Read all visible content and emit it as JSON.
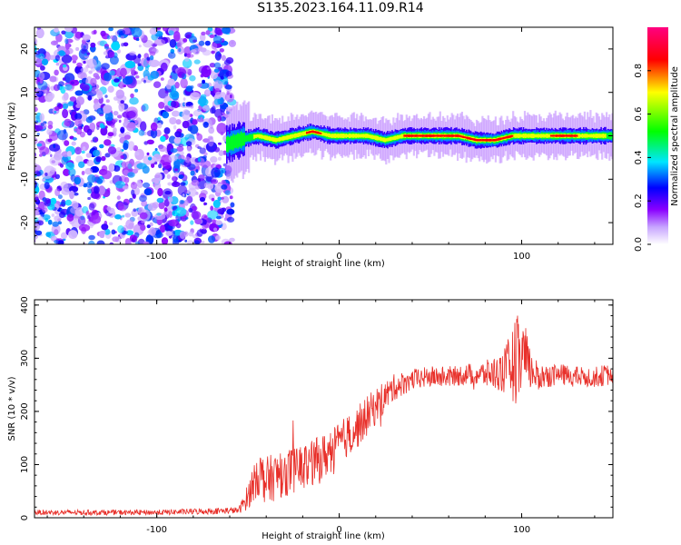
{
  "title": "S135.2023.164.11.09.R14",
  "chart_data": [
    {
      "type": "heatmap",
      "title": "",
      "xlabel": "Height of straight line (km)",
      "ylabel": "Frequency (Hz)",
      "xlim": [
        -167,
        150
      ],
      "ylim": [
        -25,
        25
      ],
      "xticks": [
        -100,
        0,
        100
      ],
      "yticks": [
        -20,
        -10,
        0,
        10,
        20
      ],
      "colorbar": {
        "label": "Normalized spectral amplitude",
        "range": [
          0.0,
          1.0
        ],
        "ticks": [
          0.0,
          0.2,
          0.4,
          0.6,
          0.8
        ],
        "colors": [
          "#ffffff",
          "#8a00ff",
          "#0000ff",
          "#00e6ff",
          "#00ff00",
          "#ffff00",
          "#ff0000",
          "#ff0080"
        ]
      },
      "noise_region_x": [
        -167,
        -60
      ],
      "signal_trace": {
        "x": [
          -62,
          -55,
          -45,
          -35,
          -25,
          -15,
          -5,
          5,
          15,
          25,
          35,
          45,
          55,
          65,
          75,
          85,
          95,
          105,
          115,
          125,
          135,
          145,
          150
        ],
        "frequency": [
          -2,
          -1,
          0,
          -1,
          0,
          1,
          0,
          0,
          0,
          -1,
          0,
          0,
          0,
          0,
          -1,
          -1,
          0,
          0,
          0,
          0,
          0,
          0,
          0
        ],
        "peak_amplitude": [
          0.5,
          0.6,
          0.7,
          0.7,
          0.75,
          0.9,
          0.8,
          0.85,
          0.8,
          0.8,
          0.85,
          0.9,
          0.95,
          0.9,
          0.85,
          0.9,
          0.85,
          0.8,
          0.85,
          0.9,
          0.8,
          0.7,
          0.6
        ]
      }
    },
    {
      "type": "line",
      "title": "",
      "xlabel": "Height of straight line (km)",
      "ylabel": "SNR (10 * v/v)",
      "xlim": [
        -167,
        150
      ],
      "ylim": [
        0,
        410
      ],
      "xticks": [
        -100,
        0,
        100
      ],
      "yticks": [
        0,
        100,
        200,
        300,
        400
      ],
      "series": [
        {
          "color": "#e8302a",
          "x": [
            -167,
            -150,
            -125,
            -100,
            -75,
            -55,
            -50,
            -45,
            -40,
            -30,
            -20,
            -10,
            0,
            10,
            20,
            30,
            40,
            50,
            60,
            70,
            80,
            90,
            95,
            100,
            105,
            110,
            120,
            130,
            140,
            150
          ],
          "values": [
            10,
            10,
            10,
            10,
            12,
            14,
            40,
            85,
            70,
            85,
            95,
            110,
            140,
            170,
            210,
            245,
            260,
            265,
            265,
            270,
            270,
            275,
            290,
            300,
            275,
            265,
            270,
            265,
            265,
            270
          ],
          "noise_amplitude": [
            5,
            5,
            5,
            5,
            6,
            6,
            25,
            45,
            45,
            45,
            45,
            45,
            40,
            40,
            35,
            25,
            20,
            20,
            20,
            20,
            25,
            40,
            70,
            100,
            35,
            25,
            20,
            20,
            20,
            20
          ]
        }
      ]
    }
  ]
}
